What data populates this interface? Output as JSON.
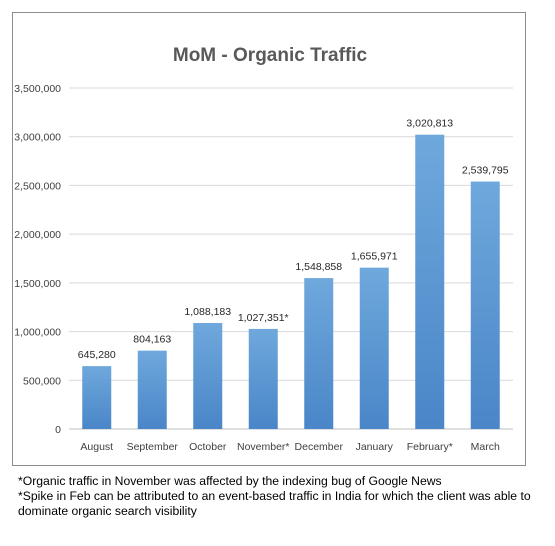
{
  "chart_data": {
    "type": "bar",
    "title": "MoM - Organic Traffic",
    "categories": [
      "August",
      "September",
      "October",
      "November*",
      "December",
      "January",
      "February*",
      "March"
    ],
    "values": [
      645280,
      804163,
      1088183,
      1027351,
      1548858,
      1655971,
      3020813,
      2539795
    ],
    "value_labels": [
      "645,280",
      "804,163",
      "1,088,183",
      "1,027,351*",
      "1,548,858",
      "1,655,971",
      "3,020,813",
      "2,539,795"
    ],
    "ylim": [
      0,
      3500000
    ],
    "y_ticks": [
      0,
      500000,
      1000000,
      1500000,
      2000000,
      2500000,
      3000000,
      3500000
    ],
    "y_tick_labels": [
      "0",
      "500,000",
      "1,000,000",
      "1,500,000",
      "2,000,000",
      "2,500,000",
      "3,000,000",
      "3,500,000"
    ],
    "grid": true,
    "legend": "none",
    "bar_color": "#5b9bd5",
    "bar_color_top": "#6fa8dc",
    "bar_color_bottom": "#4a86c8"
  },
  "footnotes": [
    "*Organic traffic in November was affected by the indexing bug of Google News",
    "*Spike in Feb can be attributed to an event-based traffic in India for which the client was able to dominate organic search visibility"
  ]
}
